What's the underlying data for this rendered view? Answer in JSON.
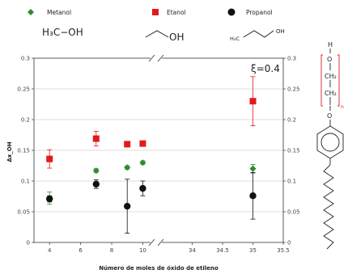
{
  "chart_data": {
    "type": "scatter",
    "title": "",
    "xlabel": "Número de moles de óxido de etileno",
    "ylabel": "Δx_OH",
    "annotation": "ξ=0.4",
    "ylim": [
      0,
      0.3
    ],
    "yticks": [
      "0",
      "0.05",
      "0.1",
      "0.15",
      "0.2",
      "0.25",
      "0.3"
    ],
    "yticks_right": [
      "0",
      "0.05",
      "0.1",
      "0.15",
      "0.2",
      "0.25",
      "0.3"
    ],
    "x_segments": [
      {
        "xlim": [
          3,
          10.5
        ],
        "ticks": [
          "4",
          "6",
          "8",
          "10"
        ]
      },
      {
        "xlim": [
          33.5,
          35.5
        ],
        "ticks": [
          "34",
          "34.5",
          "35",
          "35.5"
        ]
      }
    ],
    "grid": "horizontal",
    "legend_position": "top",
    "series": [
      {
        "name": "Metanol",
        "formula": "H₃C−OH",
        "color": "#2e8b2e",
        "marker": "diamond",
        "points": [
          {
            "x": 4,
            "y": 0.072,
            "err": 0.01
          },
          {
            "x": 7,
            "y": 0.117,
            "err": 0.003
          },
          {
            "x": 9,
            "y": 0.122,
            "err": 0.003
          },
          {
            "x": 10,
            "y": 0.13,
            "err": 0.003
          },
          {
            "x": 35,
            "y": 0.12,
            "err": 0.007
          }
        ]
      },
      {
        "name": "Etanol",
        "formula": "",
        "color": "#e31a1c",
        "marker": "square",
        "points": [
          {
            "x": 4,
            "y": 0.136,
            "err": 0.015
          },
          {
            "x": 7,
            "y": 0.169,
            "err": 0.012
          },
          {
            "x": 9,
            "y": 0.16,
            "err": 0.003
          },
          {
            "x": 10,
            "y": 0.161,
            "err": 0.003
          },
          {
            "x": 35,
            "y": 0.23,
            "err": 0.04
          }
        ]
      },
      {
        "name": "Propanol",
        "formula": "",
        "color": "#111111",
        "marker": "circle",
        "points": [
          {
            "x": 4,
            "y": 0.071,
            "err": 0.005
          },
          {
            "x": 7,
            "y": 0.095,
            "err": 0.007
          },
          {
            "x": 9,
            "y": 0.059,
            "err": 0.044
          },
          {
            "x": 10,
            "y": 0.088,
            "err": 0.012
          },
          {
            "x": 35,
            "y": 0.076,
            "err": 0.038
          }
        ]
      }
    ],
    "structure_labels": {
      "h": "H",
      "o_top": "O",
      "ch2_a": "CH₂",
      "ch2_b": "CH₂",
      "n": "n",
      "o_bottom": "O"
    },
    "ethanol_oh": "OH",
    "propanol_oh": "OH",
    "propanol_h3c": "H₃C"
  }
}
